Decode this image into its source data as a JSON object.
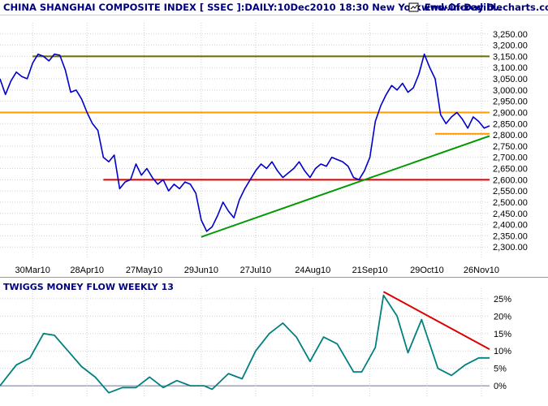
{
  "header": {
    "title": "CHINA SHANGHAI COMPOSITE INDEX [ SSEC ]:DAILY:10Dec2010 18:30 New York End-Of-Day D..",
    "site": "www.incrediblecharts.com"
  },
  "colors": {
    "background": "#ffffff",
    "price_line": "#0000cc",
    "indicator_line": "#008080",
    "olive_line": "#6b6b00",
    "orange_line": "#ff9900",
    "red_line": "#dd0000",
    "green_line": "#009900",
    "text": "#000080"
  },
  "chart_data": [
    {
      "type": "line",
      "title": "CHINA SHANGHAI COMPOSITE INDEX [ SSEC ]:DAILY:10Dec2010 18:30 New York End-Of-Day D..",
      "x_tick_labels": [
        "30Mar10",
        "28Apr10",
        "27May10",
        "29Jun10",
        "27Jul10",
        "24Aug10",
        "21Sep10",
        "29Oct10",
        "26Nov10"
      ],
      "y_tick_labels": [
        "2,300.00",
        "2,350.00",
        "2,400.00",
        "2,450.00",
        "2,500.00",
        "2,550.00",
        "2,600.00",
        "2,650.00",
        "2,700.00",
        "2,750.00",
        "2,800.00",
        "2,850.00",
        "2,900.00",
        "2,950.00",
        "3,000.00",
        "3,050.00",
        "3,100.00",
        "3,150.00",
        "3,200.00",
        "3,250.00"
      ],
      "ylim": [
        2250,
        3300
      ],
      "xlim": [
        0,
        180
      ],
      "y_axis_side": "right",
      "grid": "dotted",
      "x_tick_positions": [
        12,
        32,
        53,
        74,
        94,
        115,
        136,
        157,
        177
      ],
      "series": [
        {
          "values": [
            [
              0,
              3050
            ],
            [
              2,
              2980
            ],
            [
              4,
              3040
            ],
            [
              6,
              3080
            ],
            [
              8,
              3060
            ],
            [
              10,
              3050
            ],
            [
              12,
              3120
            ],
            [
              14,
              3160
            ],
            [
              16,
              3150
            ],
            [
              18,
              3130
            ],
            [
              20,
              3160
            ],
            [
              22,
              3155
            ],
            [
              24,
              3090
            ],
            [
              26,
              2990
            ],
            [
              28,
              3000
            ],
            [
              30,
              2960
            ],
            [
              32,
              2900
            ],
            [
              34,
              2850
            ],
            [
              36,
              2820
            ],
            [
              38,
              2700
            ],
            [
              40,
              2680
            ],
            [
              42,
              2710
            ],
            [
              44,
              2560
            ],
            [
              46,
              2590
            ],
            [
              48,
              2600
            ],
            [
              50,
              2670
            ],
            [
              52,
              2620
            ],
            [
              54,
              2650
            ],
            [
              56,
              2610
            ],
            [
              58,
              2580
            ],
            [
              60,
              2600
            ],
            [
              62,
              2550
            ],
            [
              64,
              2580
            ],
            [
              66,
              2560
            ],
            [
              68,
              2590
            ],
            [
              70,
              2580
            ],
            [
              72,
              2540
            ],
            [
              74,
              2420
            ],
            [
              76,
              2370
            ],
            [
              78,
              2390
            ],
            [
              80,
              2440
            ],
            [
              82,
              2500
            ],
            [
              84,
              2460
            ],
            [
              86,
              2430
            ],
            [
              88,
              2510
            ],
            [
              90,
              2560
            ],
            [
              92,
              2600
            ],
            [
              94,
              2640
            ],
            [
              96,
              2670
            ],
            [
              98,
              2650
            ],
            [
              100,
              2680
            ],
            [
              102,
              2640
            ],
            [
              104,
              2610
            ],
            [
              106,
              2630
            ],
            [
              108,
              2650
            ],
            [
              110,
              2680
            ],
            [
              112,
              2640
            ],
            [
              114,
              2610
            ],
            [
              116,
              2650
            ],
            [
              118,
              2670
            ],
            [
              120,
              2660
            ],
            [
              122,
              2700
            ],
            [
              124,
              2690
            ],
            [
              126,
              2680
            ],
            [
              128,
              2660
            ],
            [
              130,
              2610
            ],
            [
              132,
              2600
            ],
            [
              134,
              2640
            ],
            [
              136,
              2700
            ],
            [
              138,
              2860
            ],
            [
              140,
              2930
            ],
            [
              142,
              2980
            ],
            [
              144,
              3020
            ],
            [
              146,
              3000
            ],
            [
              148,
              3030
            ],
            [
              150,
              2990
            ],
            [
              152,
              3010
            ],
            [
              154,
              3070
            ],
            [
              156,
              3160
            ],
            [
              158,
              3100
            ],
            [
              160,
              3050
            ],
            [
              162,
              2890
            ],
            [
              164,
              2850
            ],
            [
              166,
              2880
            ],
            [
              168,
              2900
            ],
            [
              170,
              2870
            ],
            [
              172,
              2830
            ],
            [
              174,
              2880
            ],
            [
              176,
              2860
            ],
            [
              178,
              2830
            ],
            [
              180,
              2840
            ]
          ]
        }
      ],
      "trendlines": [
        {
          "kind": "horizontal",
          "y": 3150,
          "x_from": 12,
          "x_to": 180,
          "color": "#6b6b00"
        },
        {
          "kind": "horizontal",
          "y": 2900,
          "x_from": 0,
          "x_to": 180,
          "color": "#ff9900"
        },
        {
          "kind": "horizontal",
          "y": 2805,
          "x_from": 160,
          "x_to": 180,
          "color": "#ff9900"
        },
        {
          "kind": "horizontal",
          "y": 2600,
          "x_from": 38,
          "x_to": 180,
          "color": "#dd0000"
        },
        {
          "kind": "segment",
          "from": [
            74,
            2345
          ],
          "to": [
            180,
            2795
          ],
          "color": "#009900"
        }
      ]
    },
    {
      "type": "line",
      "title": "TWIGGS MONEY FLOW WEEKLY 13",
      "y_tick_labels": [
        "0%",
        "5%",
        "10%",
        "15%",
        "20%",
        "25%"
      ],
      "ylim": [
        -3,
        28
      ],
      "xlim": [
        0,
        180
      ],
      "y_axis_side": "right",
      "series": [
        {
          "values": [
            [
              0,
              0
            ],
            [
              6,
              6
            ],
            [
              11,
              8
            ],
            [
              16,
              15
            ],
            [
              20,
              14.5
            ],
            [
              25,
              10
            ],
            [
              30,
              5.5
            ],
            [
              35,
              2.5
            ],
            [
              40,
              -2
            ],
            [
              45,
              -0.5
            ],
            [
              50,
              -0.5
            ],
            [
              55,
              2.5
            ],
            [
              60,
              -0.5
            ],
            [
              65,
              1.5
            ],
            [
              70,
              0
            ],
            [
              75,
              0
            ],
            [
              78,
              -1
            ],
            [
              84,
              3.5
            ],
            [
              89,
              2
            ],
            [
              94,
              10
            ],
            [
              99,
              15
            ],
            [
              104,
              18
            ],
            [
              109,
              14
            ],
            [
              114,
              7
            ],
            [
              119,
              14
            ],
            [
              124,
              12
            ],
            [
              130,
              4
            ],
            [
              133,
              4
            ],
            [
              138,
              11
            ],
            [
              141,
              26
            ],
            [
              146,
              20
            ],
            [
              150,
              9.5
            ],
            [
              155,
              19
            ],
            [
              161,
              5
            ],
            [
              166,
              3
            ],
            [
              171,
              6
            ],
            [
              176,
              8
            ],
            [
              180,
              8
            ]
          ]
        }
      ],
      "trendlines": [
        {
          "kind": "segment",
          "from": [
            141,
            27
          ],
          "to": [
            180,
            10.5
          ],
          "color": "#dd0000"
        }
      ]
    }
  ]
}
